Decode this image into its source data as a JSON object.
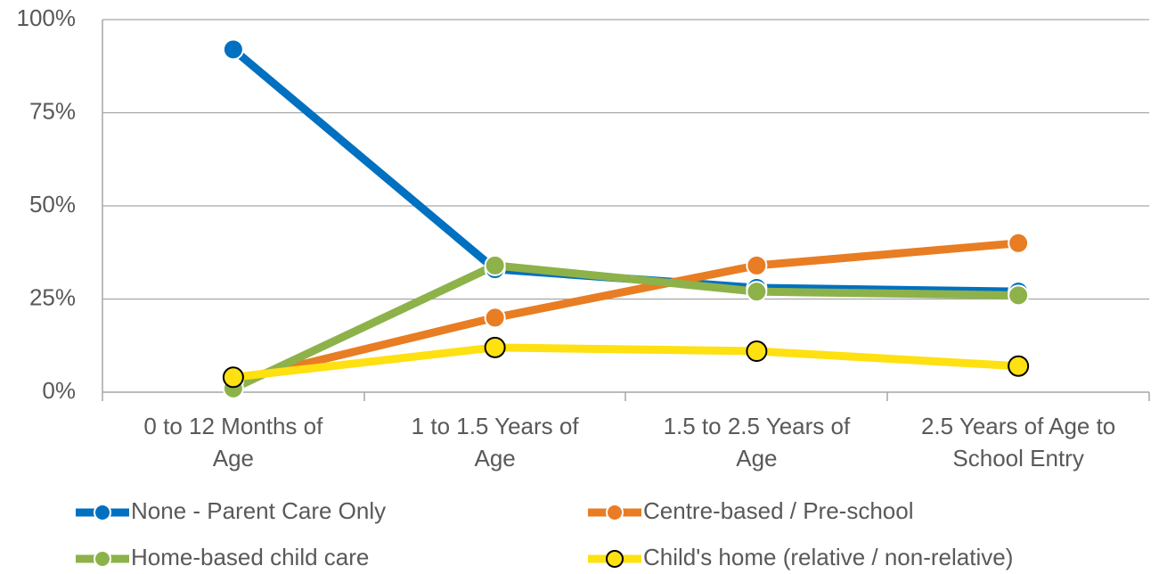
{
  "chart_data": {
    "type": "line",
    "categories": [
      "0 to 12 Months of Age",
      "1 to 1.5 Years of Age",
      "1.5 to 2.5 Years of Age",
      "2.5 Years of Age to School Entry"
    ],
    "series": [
      {
        "name": "None - Parent Care Only",
        "color": "#0070c0",
        "marker_edge": "#ffffff",
        "values": [
          92,
          33,
          28,
          27
        ]
      },
      {
        "name": "Centre-based / Pre-school",
        "color": "#e87d23",
        "marker_edge": "#ffffff",
        "values": [
          3,
          20,
          34,
          40
        ]
      },
      {
        "name": "Home-based child care",
        "color": "#8db249",
        "marker_edge": "#ffffff",
        "values": [
          1,
          34,
          27,
          26
        ]
      },
      {
        "name": "Child's home (relative / non-relative)",
        "color": "#ffe011",
        "marker_edge": "#000000",
        "values": [
          4,
          12,
          11,
          7
        ]
      }
    ],
    "ylim": [
      0,
      100
    ],
    "yticks": [
      {
        "value": 0,
        "label": "0%"
      },
      {
        "value": 25,
        "label": "25%"
      },
      {
        "value": 50,
        "label": "50%"
      },
      {
        "value": 75,
        "label": "75%"
      },
      {
        "value": 100,
        "label": "100%"
      }
    ],
    "grid": true,
    "legend": "bottom"
  }
}
